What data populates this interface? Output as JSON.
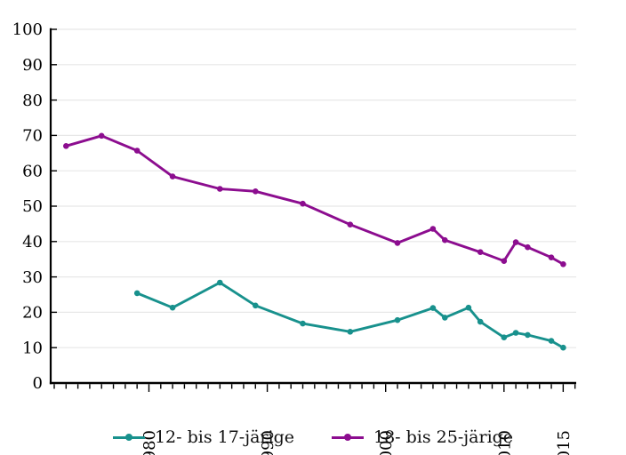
{
  "chart_data": {
    "type": "line",
    "title": "",
    "xlabel": "",
    "ylabel": "",
    "ylim": [
      0,
      100
    ],
    "xlim": [
      1971.7,
      2016.1
    ],
    "yticks": [
      0,
      10,
      20,
      30,
      40,
      50,
      60,
      70,
      80,
      90,
      100
    ],
    "x_major_ticks": [
      1980,
      1990,
      2000,
      2010,
      2015
    ],
    "x_minor_tick_range": {
      "from": 1972,
      "to": 2016,
      "step": 1
    },
    "grid": "horizontal",
    "grid_color": "#e7e7e7",
    "axis_color": "#000000",
    "legend_position": "bottom",
    "series": [
      {
        "name": "12- bis 17-järige",
        "color": "#18918D",
        "points": [
          [
            1979,
            25.4
          ],
          [
            1982,
            21.3
          ],
          [
            1986,
            28.4
          ],
          [
            1989,
            21.9
          ],
          [
            1993,
            16.8
          ],
          [
            1997,
            14.5
          ],
          [
            2001,
            17.8
          ],
          [
            2004,
            21.2
          ],
          [
            2005,
            18.5
          ],
          [
            2007,
            21.3
          ],
          [
            2008,
            17.3
          ],
          [
            2010,
            12.9
          ],
          [
            2011,
            14.2
          ],
          [
            2012,
            13.6
          ],
          [
            2014,
            11.9
          ],
          [
            2015,
            10.0
          ]
        ]
      },
      {
        "name": "18- bis 25-järige",
        "color": "#8C0D8F",
        "points": [
          [
            1973,
            67.0
          ],
          [
            1976,
            69.9
          ],
          [
            1979,
            65.7
          ],
          [
            1982,
            58.4
          ],
          [
            1986,
            54.9
          ],
          [
            1989,
            54.2
          ],
          [
            1993,
            50.7
          ],
          [
            1997,
            44.8
          ],
          [
            2001,
            39.6
          ],
          [
            2004,
            43.6
          ],
          [
            2005,
            40.4
          ],
          [
            2008,
            37.0
          ],
          [
            2010,
            34.5
          ],
          [
            2011,
            39.8
          ],
          [
            2012,
            38.4
          ],
          [
            2014,
            35.5
          ],
          [
            2015,
            33.6
          ]
        ]
      }
    ]
  }
}
